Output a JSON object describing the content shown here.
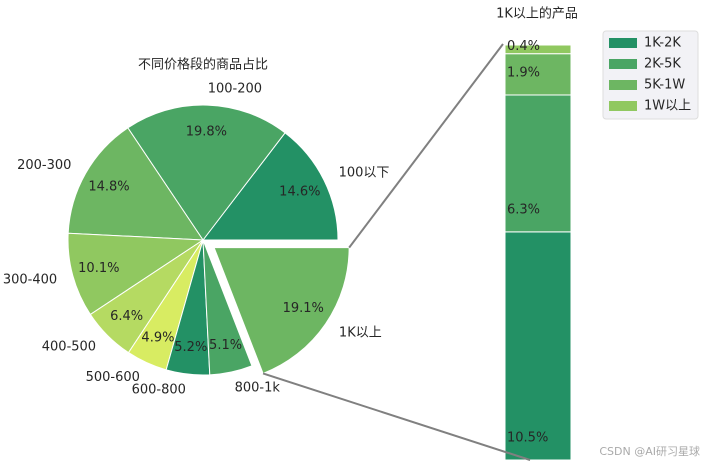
{
  "chart_data": [
    {
      "type": "pie",
      "title": "不同价格段的商品占比",
      "categories": [
        "100以下",
        "100-200",
        "200-300",
        "300-400",
        "400-500",
        "500-600",
        "600-800",
        "800-1k",
        "1K以上"
      ],
      "values": [
        14.6,
        19.8,
        14.8,
        10.1,
        6.4,
        4.9,
        5.2,
        5.1,
        19.1
      ],
      "value_labels": [
        "14.6%",
        "19.8%",
        "14.8%",
        "10.1%",
        "6.4%",
        "4.9%",
        "5.2%",
        "5.1%",
        "19.1%"
      ],
      "colors": [
        "#239165",
        "#4aa564",
        "#6db662",
        "#90c860",
        "#b5da62",
        "#d8ec62",
        "#239165",
        "#4aa564",
        "#6db662"
      ],
      "explode": [
        0,
        0,
        0,
        0,
        0,
        0,
        0,
        0,
        0.1
      ]
    },
    {
      "type": "bar",
      "title": "1K以上的产品",
      "stacked": true,
      "categories": [
        null
      ],
      "legend": "upper right",
      "series": [
        {
          "name": "1K-2K",
          "color": "#239165",
          "values": [
            10.5
          ],
          "value_labels": [
            "10.5%"
          ]
        },
        {
          "name": "2K-5K",
          "color": "#4aa564",
          "values": [
            6.3
          ],
          "value_labels": [
            "6.3%"
          ]
        },
        {
          "name": "5K-1W",
          "color": "#6db662",
          "values": [
            1.9
          ],
          "value_labels": [
            "1.9%"
          ]
        },
        {
          "name": "1W以上",
          "color": "#90c860",
          "values": [
            0.4
          ],
          "value_labels": [
            "0.4%"
          ]
        }
      ]
    }
  ],
  "watermark": "CSDN @AI研习星球"
}
